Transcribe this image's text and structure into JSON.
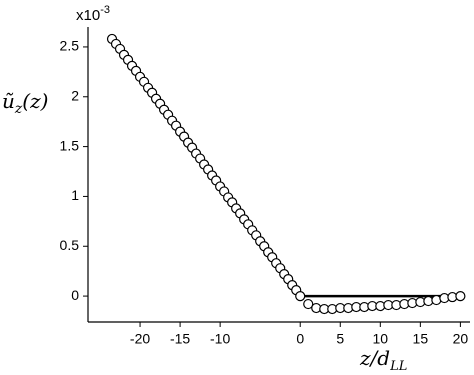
{
  "chart_data": {
    "type": "scatter",
    "multiplier_base": "x10",
    "multiplier_exponent": "-3",
    "y_label": [
      "ũ",
      "z",
      "(z)"
    ],
    "x_label": [
      "z/d",
      "LL"
    ],
    "xlim": [
      -26.5,
      21.2
    ],
    "xticks": [
      -20,
      -15,
      -10,
      0,
      5,
      10,
      15,
      20
    ],
    "ylim": [
      -0.26,
      2.7
    ],
    "yticks": [
      0,
      0.5,
      1,
      1.5,
      2,
      2.5
    ],
    "series": [
      {
        "kind": "points",
        "color": "#000000",
        "x": [
          -23.5,
          -23,
          -22.5,
          -22,
          -21.5,
          -21,
          -20.5,
          -20,
          -19.5,
          -19,
          -18.5,
          -18,
          -17.5,
          -17,
          -16.5,
          -16,
          -15.5,
          -15,
          -14.5,
          -14,
          -13.5,
          -13,
          -12.5,
          -12,
          -11.5,
          -11,
          -10.5,
          -10,
          -9.5,
          -9,
          -8.5,
          -8,
          -7.5,
          -7,
          -6.5,
          -6,
          -5.5,
          -5,
          -4.5,
          -4,
          -3.5,
          -3,
          -2.5,
          -2,
          -1.5,
          -1,
          -0.5,
          0,
          1,
          2,
          3,
          4,
          5,
          6,
          7,
          8,
          9,
          10,
          11,
          12,
          13,
          14,
          15,
          16,
          17,
          18,
          19,
          20
        ],
        "values": [
          2.58,
          2.53,
          2.48,
          2.42,
          2.37,
          2.31,
          2.26,
          2.2,
          2.15,
          2.09,
          2.04,
          1.98,
          1.93,
          1.87,
          1.82,
          1.76,
          1.71,
          1.65,
          1.6,
          1.54,
          1.49,
          1.43,
          1.38,
          1.32,
          1.27,
          1.21,
          1.16,
          1.1,
          1.05,
          0.99,
          0.94,
          0.88,
          0.83,
          0.77,
          0.72,
          0.66,
          0.61,
          0.55,
          0.5,
          0.44,
          0.39,
          0.33,
          0.28,
          0.22,
          0.17,
          0.11,
          0.06,
          0,
          -0.08,
          -0.12,
          -0.13,
          -0.13,
          -0.12,
          -0.12,
          -0.11,
          -0.11,
          -0.1,
          -0.1,
          -0.09,
          -0.09,
          -0.08,
          -0.07,
          -0.06,
          -0.05,
          -0.04,
          -0.02,
          -0.01,
          0
        ]
      },
      {
        "kind": "line",
        "color": "#000000",
        "x": [
          -23.5,
          0,
          20
        ],
        "values": [
          2.58,
          0,
          0
        ]
      }
    ]
  }
}
